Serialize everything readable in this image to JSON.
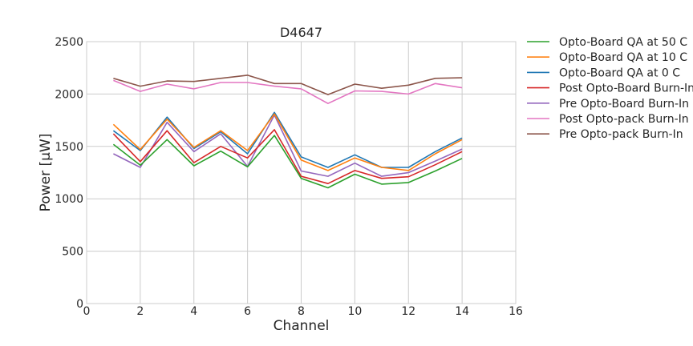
{
  "chart_data": {
    "type": "line",
    "title": "D4647",
    "xlabel": "Channel",
    "ylabel": "Power [μW]",
    "xlim": [
      0,
      16
    ],
    "ylim": [
      0,
      2500
    ],
    "xticks": [
      "0",
      "2",
      "4",
      "6",
      "8",
      "10",
      "12",
      "14",
      "16"
    ],
    "yticks": [
      "0",
      "500",
      "1000",
      "1500",
      "2000",
      "2500"
    ],
    "grid": true,
    "legend_position": "outside-right",
    "x": [
      1,
      2,
      3,
      4,
      5,
      6,
      7,
      8,
      9,
      10,
      11,
      12,
      13,
      14
    ],
    "series": [
      {
        "name": "Pre Opto-pack Burn-In",
        "color": "#8c564b",
        "values": [
          2150,
          2075,
          2125,
          2120,
          2150,
          2180,
          2100,
          2100,
          1995,
          2095,
          2055,
          2085,
          2150,
          2155
        ]
      },
      {
        "name": "Post Opto-pack Burn-In",
        "color": "#e377c2",
        "values": [
          2130,
          2025,
          2095,
          2050,
          2110,
          2110,
          2075,
          2050,
          1910,
          2030,
          2025,
          2000,
          2100,
          2060
        ]
      },
      {
        "name": "Pre Opto-Board Burn-In",
        "color": "#9467bd",
        "values": [
          1430,
          1300,
          1730,
          1450,
          1620,
          1310,
          1800,
          1265,
          1215,
          1340,
          1215,
          1250,
          1360,
          1475
        ]
      },
      {
        "name": "Post Opto-Board Burn-In",
        "color": "#d62728",
        "values": [
          1620,
          1355,
          1650,
          1345,
          1500,
          1390,
          1660,
          1215,
          1145,
          1270,
          1195,
          1210,
          1325,
          1450
        ]
      },
      {
        "name": "Opto-Board QA at 0 C",
        "color": "#1f77b4",
        "values": [
          1650,
          1460,
          1780,
          1480,
          1640,
          1430,
          1825,
          1400,
          1300,
          1420,
          1300,
          1300,
          1450,
          1580
        ]
      },
      {
        "name": "Opto-Board QA at 10 C",
        "color": "#ff7f0e",
        "values": [
          1710,
          1470,
          1760,
          1490,
          1650,
          1460,
          1810,
          1370,
          1270,
          1390,
          1300,
          1270,
          1430,
          1565
        ]
      },
      {
        "name": "Opto-Board QA at 50 C",
        "color": "#2ca02c",
        "values": [
          1520,
          1320,
          1565,
          1315,
          1455,
          1305,
          1605,
          1195,
          1105,
          1235,
          1140,
          1155,
          1265,
          1385
        ]
      }
    ]
  }
}
